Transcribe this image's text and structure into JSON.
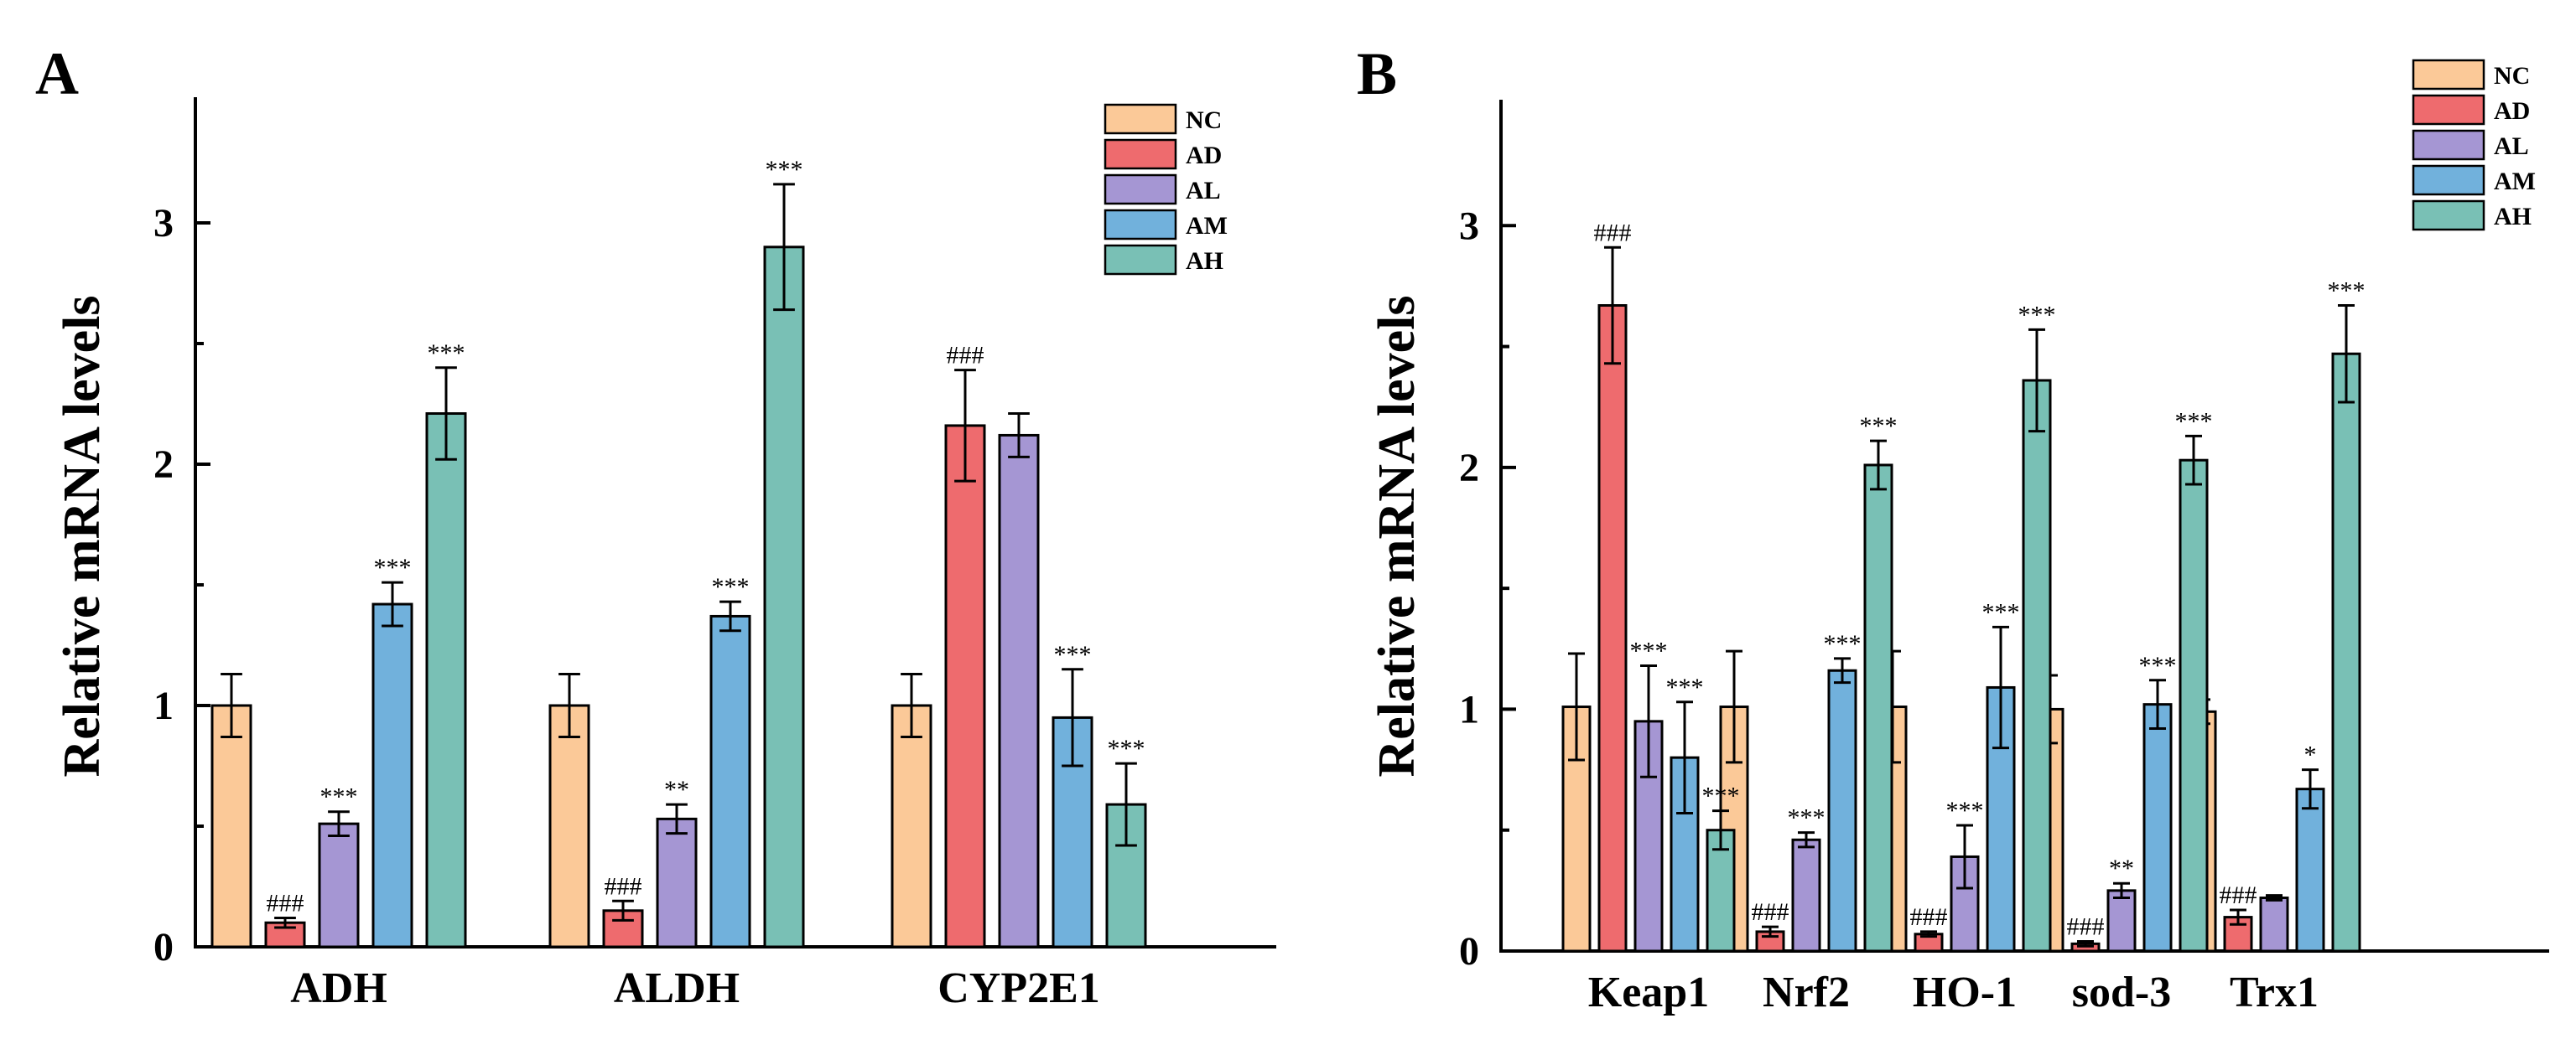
{
  "colors": {
    "NC": "#fbc998",
    "AD": "#ee6b6e",
    "AL": "#a596d3",
    "AM": "#71b1dc",
    "AH": "#79c0b5"
  },
  "chart_data": [
    {
      "panel": "A",
      "type": "bar",
      "ylabel": "Relative mRNA levels",
      "ylim": [
        0,
        3.5
      ],
      "yticks": [
        0,
        1,
        2,
        3
      ],
      "legend": [
        "NC",
        "AD",
        "AL",
        "AM",
        "AH"
      ],
      "categories": [
        "ADH",
        "ALDH",
        "CYP2E1"
      ],
      "series": [
        {
          "name": "NC",
          "values": [
            1.0,
            1.0,
            1.0
          ],
          "errors": [
            0.13,
            0.13,
            0.13
          ],
          "labels": [
            "",
            "",
            ""
          ]
        },
        {
          "name": "AD",
          "values": [
            0.1,
            0.15,
            2.16
          ],
          "errors": [
            0.02,
            0.04,
            0.23
          ],
          "labels": [
            "###",
            "###",
            "###"
          ]
        },
        {
          "name": "AL",
          "values": [
            0.51,
            0.53,
            2.12
          ],
          "errors": [
            0.05,
            0.06,
            0.09
          ],
          "labels": [
            "***",
            "**",
            ""
          ]
        },
        {
          "name": "AM",
          "values": [
            1.42,
            1.37,
            0.95
          ],
          "errors": [
            0.09,
            0.06,
            0.2
          ],
          "labels": [
            "***",
            "***",
            "***"
          ]
        },
        {
          "name": "AH",
          "values": [
            2.21,
            2.9,
            0.59
          ],
          "errors": [
            0.19,
            0.26,
            0.17
          ],
          "labels": [
            "***",
            "***",
            "***"
          ]
        }
      ]
    },
    {
      "panel": "B",
      "type": "bar",
      "ylabel": "Relative mRNA levels",
      "ylim": [
        0,
        3.5
      ],
      "yticks": [
        0,
        1,
        2,
        3
      ],
      "legend": [
        "NC",
        "AD",
        "AL",
        "AM",
        "AH"
      ],
      "categories": [
        "Keap1",
        "Nrf2",
        "HO-1",
        "sod-3",
        "Trx1"
      ],
      "series": [
        {
          "name": "NC",
          "values": [
            1.01,
            1.01,
            1.01,
            1.0,
            0.99
          ],
          "errors": [
            0.22,
            0.23,
            0.23,
            0.14,
            0.05
          ],
          "labels": [
            "",
            "",
            "",
            "",
            ""
          ]
        },
        {
          "name": "AD",
          "values": [
            2.67,
            0.08,
            0.07,
            0.03,
            0.14
          ],
          "errors": [
            0.24,
            0.02,
            0.01,
            0.01,
            0.03
          ],
          "labels": [
            "###",
            "###",
            "###",
            "###",
            "###"
          ]
        },
        {
          "name": "AL",
          "values": [
            0.95,
            0.46,
            0.39,
            0.25,
            0.22
          ],
          "errors": [
            0.23,
            0.03,
            0.13,
            0.03,
            0.01
          ],
          "labels": [
            "***",
            "***",
            "***",
            "**",
            ""
          ]
        },
        {
          "name": "AM",
          "values": [
            0.8,
            1.16,
            1.09,
            1.02,
            0.67
          ],
          "errors": [
            0.23,
            0.05,
            0.25,
            0.1,
            0.08
          ],
          "labels": [
            "***",
            "***",
            "***",
            "***",
            "*"
          ]
        },
        {
          "name": "AH",
          "values": [
            0.5,
            2.01,
            2.36,
            2.03,
            2.47
          ],
          "errors": [
            0.08,
            0.1,
            0.21,
            0.1,
            0.2
          ],
          "labels": [
            "***",
            "***",
            "***",
            "***",
            "***"
          ]
        }
      ]
    }
  ]
}
